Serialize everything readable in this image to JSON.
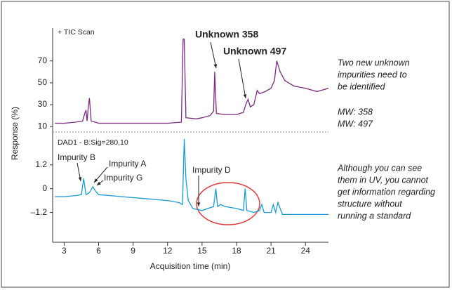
{
  "chart_data": [
    {
      "type": "line",
      "label": "+ TIC Scan",
      "ylabel": "Response (%)",
      "xlim": [
        2,
        26
      ],
      "ylim": [
        5,
        100
      ],
      "yticks": [
        10,
        30,
        50,
        70
      ],
      "x": [
        2.2,
        3,
        4,
        4.6,
        4.8,
        4.9,
        5.0,
        5.1,
        5.2,
        5.35,
        6,
        8,
        10,
        12,
        13.2,
        13.35,
        13.45,
        13.6,
        14.5,
        15,
        15.7,
        16.0,
        16.1,
        16.25,
        17,
        18,
        18.6,
        18.8,
        19.0,
        19.2,
        19.5,
        19.8,
        20.0,
        20.5,
        21.0,
        21.3,
        21.5,
        21.8,
        22.2,
        23,
        24,
        25,
        26
      ],
      "series": [
        {
          "color": "#7b2a7e",
          "values": [
            13,
            13,
            14,
            15,
            22,
            25,
            15,
            28,
            36,
            15,
            13,
            13,
            13,
            13,
            14,
            90,
            90,
            18,
            17,
            18,
            20,
            24,
            60,
            22,
            21,
            21,
            23,
            30,
            35,
            28,
            30,
            43,
            40,
            42,
            45,
            52,
            70,
            60,
            52,
            47,
            45,
            42,
            45
          ]
        }
      ],
      "annotations": [
        "Unknown 358",
        "Unknown 497"
      ]
    },
    {
      "type": "line",
      "label": "DAD1 - B:Sig=280,10",
      "xlabel": "Acquisition time (min)",
      "xlim": [
        2,
        26
      ],
      "xticks": [
        3,
        6,
        9,
        12,
        15,
        18,
        21,
        24
      ],
      "ylim": [
        -2.7,
        2.5
      ],
      "yticks": [
        1.2,
        0,
        {
          "value": -1.2,
          "label": "–1.2"
        }
      ],
      "x": [
        2.2,
        3,
        4,
        4.5,
        4.7,
        4.9,
        5.2,
        5.5,
        5.7,
        6,
        8,
        10,
        12,
        13,
        13.3,
        13.45,
        13.6,
        13.8,
        14.2,
        15,
        16,
        16.2,
        16.35,
        16.6,
        17,
        18,
        18.6,
        18.75,
        18.9,
        19.5,
        20.0,
        20.2,
        20.4,
        21.0,
        21.2,
        21.4,
        21.6,
        22,
        24,
        26
      ],
      "series": [
        {
          "color": "#1a9ad6",
          "values": [
            -0.4,
            -0.4,
            -0.35,
            -0.3,
            0.5,
            -0.3,
            -0.2,
            0.1,
            -0.1,
            -0.3,
            -0.4,
            -0.5,
            -0.6,
            -0.7,
            -0.8,
            2.5,
            0.5,
            -0.6,
            -1.0,
            -1.1,
            -0.9,
            0.0,
            -0.9,
            -0.8,
            -0.9,
            -1.0,
            -1.1,
            0.0,
            -1.1,
            -1.2,
            -1.1,
            -0.8,
            -1.2,
            -1.2,
            -0.8,
            -1.2,
            -0.7,
            -1.3,
            -1.3,
            -1.3
          ]
        }
      ],
      "annotations": [
        "Impurity B",
        "Impurity A",
        "Impurity G",
        "Impurity D"
      ]
    }
  ],
  "notes": [
    [
      "Two new unknown",
      "impurities need to",
      "be identified"
    ],
    [
      "MW: 358",
      "MW: 497"
    ],
    [
      "Although you can see",
      "them in UV, you cannot",
      "get information regarding",
      "structure without",
      "running a standard"
    ]
  ]
}
